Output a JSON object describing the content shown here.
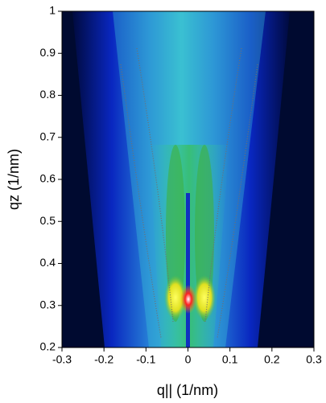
{
  "chart_data": {
    "type": "heatmap",
    "xlabel": "q|| (1/nm)",
    "ylabel": "qz (1/nm)",
    "xlim": [
      -0.3,
      0.3
    ],
    "xticks": [
      -0.3,
      -0.2,
      -0.1,
      0,
      0.1,
      0.2,
      0.3
    ],
    "ylim": [
      0.2,
      1
    ],
    "yticks": [
      0.2,
      0.3,
      0.4,
      0.5,
      0.6,
      0.7,
      0.8,
      0.9,
      1
    ]
  }
}
